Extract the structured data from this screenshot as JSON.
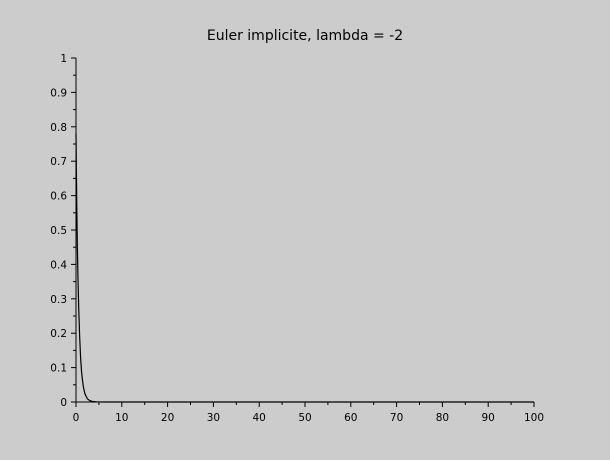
{
  "chart_data": {
    "type": "line",
    "title": "Euler implicite, lambda = -2",
    "xlabel": "",
    "ylabel": "",
    "xlim": [
      0,
      100
    ],
    "ylim": [
      0,
      1
    ],
    "x_ticks": [
      0,
      10,
      20,
      30,
      40,
      50,
      60,
      70,
      80,
      90,
      100
    ],
    "y_ticks": [
      0,
      0.1,
      0.2,
      0.3,
      0.4,
      0.5,
      0.6,
      0.7,
      0.8,
      0.9,
      1
    ],
    "grid": false,
    "colors": {
      "background": "#cccccc",
      "line": "#000000",
      "axes": "#000000"
    },
    "series": [
      {
        "x": [
          0,
          0.1,
          0.2,
          0.3,
          0.4,
          0.5,
          0.6,
          0.7,
          0.8,
          0.9,
          1.0,
          1.2,
          1.4,
          1.6,
          1.8,
          2.0,
          2.5,
          3.0,
          3.5,
          4.0,
          4.5,
          5.0,
          6.0,
          8.0,
          10,
          20,
          40,
          60,
          80,
          100
        ],
        "y": [
          0.78,
          0.65,
          0.54,
          0.45,
          0.38,
          0.32,
          0.27,
          0.23,
          0.19,
          0.16,
          0.13,
          0.09,
          0.065,
          0.045,
          0.032,
          0.022,
          0.009,
          0.004,
          0.002,
          0.001,
          0.0005,
          0.0002,
          0,
          0,
          0,
          0,
          0,
          0,
          0,
          0
        ]
      }
    ]
  }
}
